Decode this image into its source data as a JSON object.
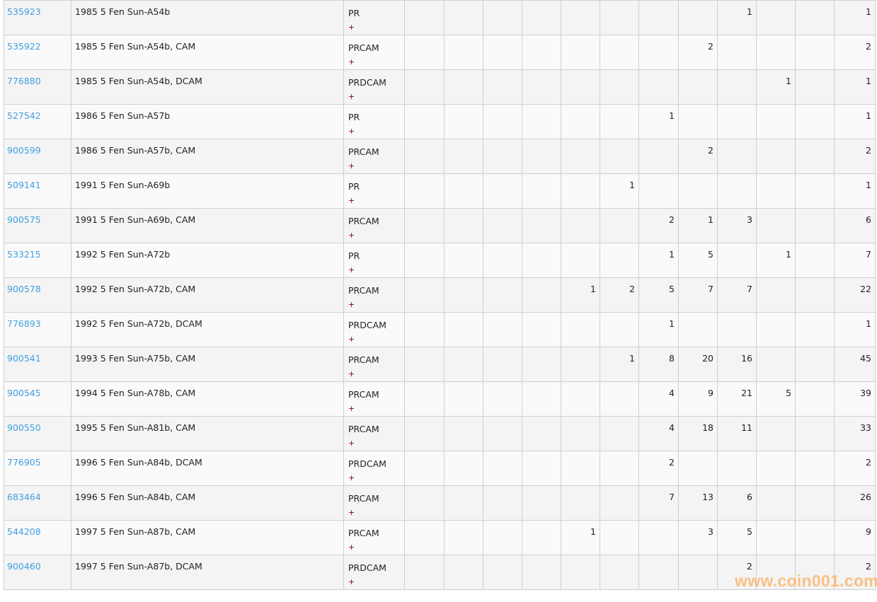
{
  "table": {
    "plus_label": "+",
    "rows": [
      {
        "id": "535923",
        "desc": "1985 5 Fen Sun-A54b",
        "designation": "PR",
        "grades": [
          "",
          "",
          "",
          "",
          "",
          "",
          "",
          "",
          "1",
          "",
          ""
        ],
        "total": "1"
      },
      {
        "id": "535922",
        "desc": "1985 5 Fen Sun-A54b, CAM",
        "designation": "PRCAM",
        "grades": [
          "",
          "",
          "",
          "",
          "",
          "",
          "",
          "2",
          "",
          "",
          ""
        ],
        "total": "2"
      },
      {
        "id": "776880",
        "desc": "1985 5 Fen Sun-A54b, DCAM",
        "designation": "PRDCAM",
        "grades": [
          "",
          "",
          "",
          "",
          "",
          "",
          "",
          "",
          "",
          "1",
          ""
        ],
        "total": "1"
      },
      {
        "id": "527542",
        "desc": "1986 5 Fen Sun-A57b",
        "designation": "PR",
        "grades": [
          "",
          "",
          "",
          "",
          "",
          "",
          "1",
          "",
          "",
          "",
          ""
        ],
        "total": "1"
      },
      {
        "id": "900599",
        "desc": "1986 5 Fen Sun-A57b, CAM",
        "designation": "PRCAM",
        "grades": [
          "",
          "",
          "",
          "",
          "",
          "",
          "",
          "2",
          "",
          "",
          ""
        ],
        "total": "2"
      },
      {
        "id": "509141",
        "desc": "1991 5 Fen Sun-A69b",
        "designation": "PR",
        "grades": [
          "",
          "",
          "",
          "",
          "",
          "1",
          "",
          "",
          "",
          "",
          ""
        ],
        "total": "1"
      },
      {
        "id": "900575",
        "desc": "1991 5 Fen Sun-A69b, CAM",
        "designation": "PRCAM",
        "grades": [
          "",
          "",
          "",
          "",
          "",
          "",
          "2",
          "1",
          "3",
          "",
          ""
        ],
        "total": "6"
      },
      {
        "id": "533215",
        "desc": "1992 5 Fen Sun-A72b",
        "designation": "PR",
        "grades": [
          "",
          "",
          "",
          "",
          "",
          "",
          "1",
          "5",
          "",
          "1",
          ""
        ],
        "total": "7"
      },
      {
        "id": "900578",
        "desc": "1992 5 Fen Sun-A72b, CAM",
        "designation": "PRCAM",
        "grades": [
          "",
          "",
          "",
          "",
          "1",
          "2",
          "5",
          "7",
          "7",
          "",
          ""
        ],
        "total": "22"
      },
      {
        "id": "776893",
        "desc": "1992 5 Fen Sun-A72b, DCAM",
        "designation": "PRDCAM",
        "grades": [
          "",
          "",
          "",
          "",
          "",
          "",
          "1",
          "",
          "",
          "",
          ""
        ],
        "total": "1"
      },
      {
        "id": "900541",
        "desc": "1993 5 Fen Sun-A75b, CAM",
        "designation": "PRCAM",
        "grades": [
          "",
          "",
          "",
          "",
          "",
          "1",
          "8",
          "20",
          "16",
          "",
          ""
        ],
        "total": "45"
      },
      {
        "id": "900545",
        "desc": "1994 5 Fen Sun-A78b, CAM",
        "designation": "PRCAM",
        "grades": [
          "",
          "",
          "",
          "",
          "",
          "",
          "4",
          "9",
          "21",
          "5",
          ""
        ],
        "total": "39"
      },
      {
        "id": "900550",
        "desc": "1995 5 Fen Sun-A81b, CAM",
        "designation": "PRCAM",
        "grades": [
          "",
          "",
          "",
          "",
          "",
          "",
          "4",
          "18",
          "11",
          "",
          ""
        ],
        "total": "33"
      },
      {
        "id": "776905",
        "desc": "1996 5 Fen Sun-A84b, DCAM",
        "designation": "PRDCAM",
        "grades": [
          "",
          "",
          "",
          "",
          "",
          "",
          "2",
          "",
          "",
          "",
          ""
        ],
        "total": "2"
      },
      {
        "id": "683464",
        "desc": "1996 5 Fen Sun-A84b, CAM",
        "designation": "PRCAM",
        "grades": [
          "",
          "",
          "",
          "",
          "",
          "",
          "7",
          "13",
          "6",
          "",
          ""
        ],
        "total": "26"
      },
      {
        "id": "544208",
        "desc": "1997 5 Fen Sun-A87b, CAM",
        "designation": "PRCAM",
        "grades": [
          "",
          "",
          "",
          "",
          "1",
          "",
          "",
          "3",
          "5",
          "",
          ""
        ],
        "total": "9"
      },
      {
        "id": "900460",
        "desc": "1997 5 Fen Sun-A87b, DCAM",
        "designation": "PRDCAM",
        "grades": [
          "",
          "",
          "",
          "",
          "",
          "",
          "",
          "",
          "2",
          "",
          ""
        ],
        "total": "2"
      }
    ]
  },
  "watermark": "www.coin001.com",
  "colors": {
    "link": "#3f9fe0",
    "plus": "#8b0000",
    "border": "#cfcfcf",
    "watermark": "#ff9628"
  }
}
